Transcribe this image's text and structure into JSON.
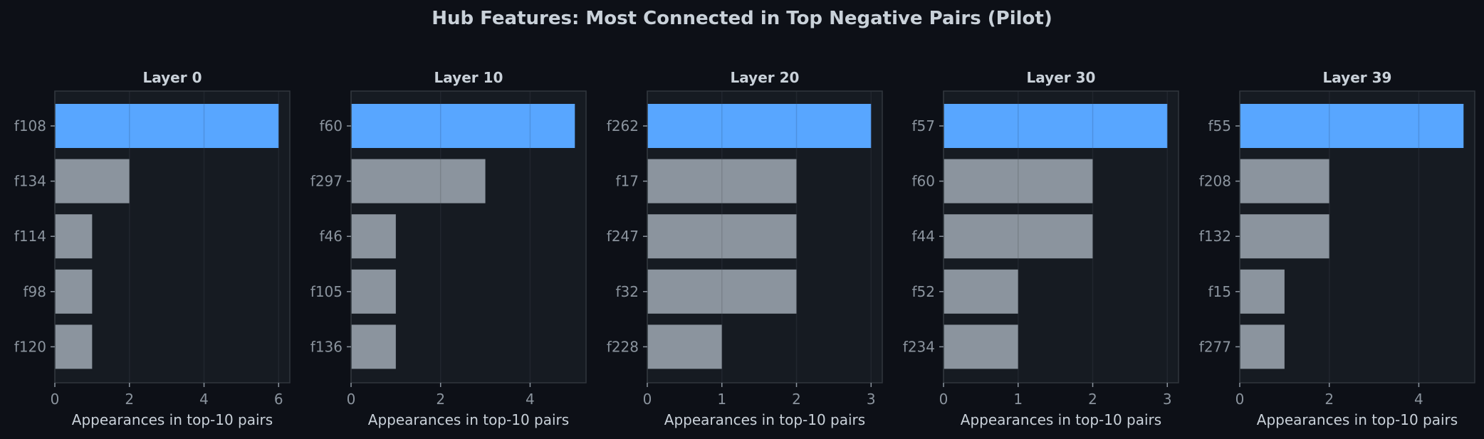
{
  "title": "Hub Features: Most Connected in Top Negative Pairs (Pilot)",
  "colors": {
    "background": "#0d1017",
    "panel": "#161b22",
    "frame": "#30363d",
    "grid": "#262c35",
    "highlight_bar": "#58a6ff",
    "bar": "#8b949e",
    "text": "#c9d1d9",
    "tick_text": "#8b949e"
  },
  "chart_data": [
    {
      "type": "bar",
      "orientation": "horizontal",
      "title": "Layer 0",
      "categories": [
        "f108",
        "f134",
        "f114",
        "f98",
        "f120"
      ],
      "values": [
        6,
        2,
        1,
        1,
        1
      ],
      "highlight_index": 0,
      "xlabel": "Appearances in top-10 pairs",
      "xlim": [
        0,
        6.3
      ],
      "xticks": [
        0,
        2,
        4,
        6
      ],
      "grid": true
    },
    {
      "type": "bar",
      "orientation": "horizontal",
      "title": "Layer 10",
      "categories": [
        "f60",
        "f297",
        "f46",
        "f105",
        "f136"
      ],
      "values": [
        5,
        3,
        1,
        1,
        1
      ],
      "highlight_index": 0,
      "xlabel": "Appearances in top-10 pairs",
      "xlim": [
        0,
        5.25
      ],
      "xticks": [
        0,
        2,
        4
      ],
      "grid": true
    },
    {
      "type": "bar",
      "orientation": "horizontal",
      "title": "Layer 20",
      "categories": [
        "f262",
        "f17",
        "f247",
        "f32",
        "f228"
      ],
      "values": [
        3,
        2,
        2,
        2,
        1
      ],
      "highlight_index": 0,
      "xlabel": "Appearances in top-10 pairs",
      "xlim": [
        0,
        3.15
      ],
      "xticks": [
        0,
        1,
        2,
        3
      ],
      "grid": true
    },
    {
      "type": "bar",
      "orientation": "horizontal",
      "title": "Layer 30",
      "categories": [
        "f57",
        "f60",
        "f44",
        "f52",
        "f234"
      ],
      "values": [
        3,
        2,
        2,
        1,
        1
      ],
      "highlight_index": 0,
      "xlabel": "Appearances in top-10 pairs",
      "xlim": [
        0,
        3.15
      ],
      "xticks": [
        0,
        1,
        2,
        3
      ],
      "grid": true
    },
    {
      "type": "bar",
      "orientation": "horizontal",
      "title": "Layer 39",
      "categories": [
        "f55",
        "f208",
        "f132",
        "f15",
        "f277"
      ],
      "values": [
        5,
        2,
        2,
        1,
        1
      ],
      "highlight_index": 0,
      "xlabel": "Appearances in top-10 pairs",
      "xlim": [
        0,
        5.25
      ],
      "xticks": [
        0,
        2,
        4
      ],
      "grid": true
    }
  ]
}
